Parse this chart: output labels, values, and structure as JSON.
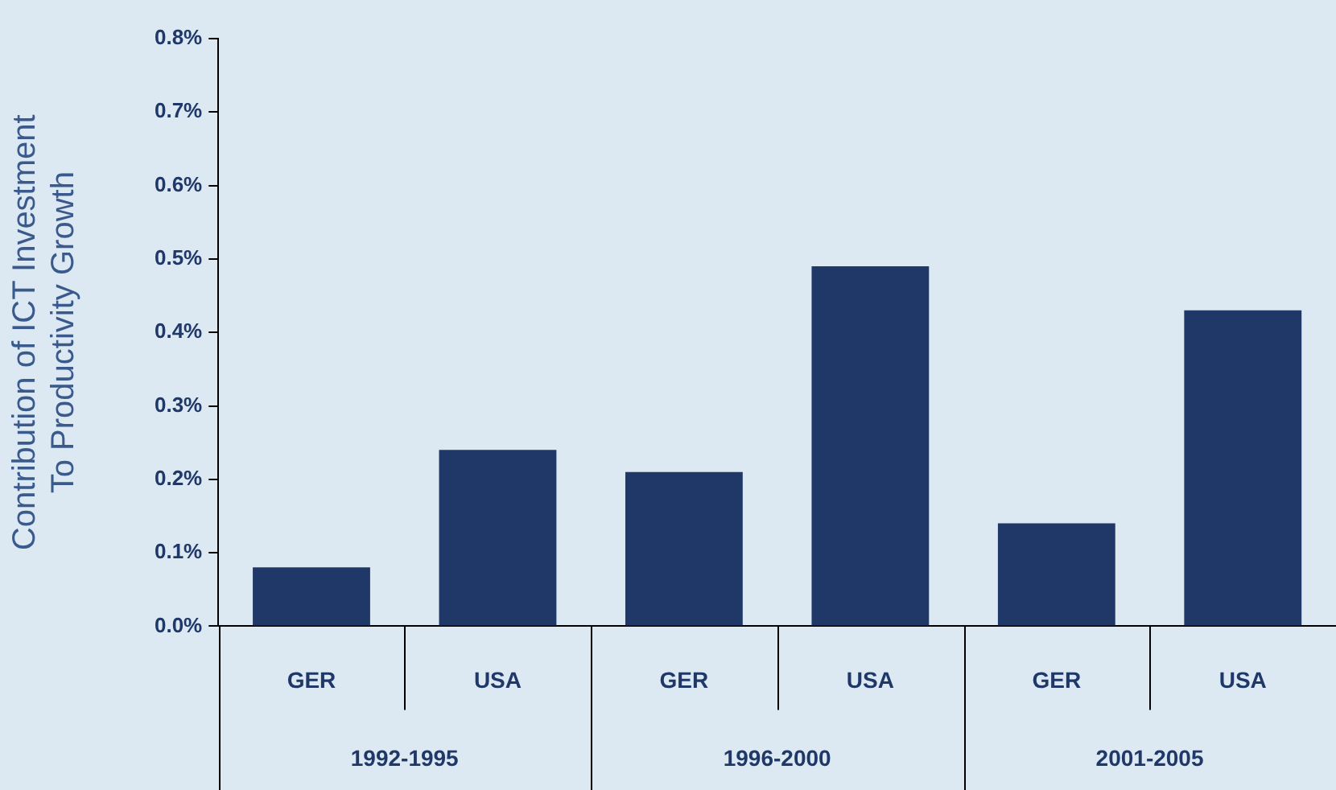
{
  "chart_data": {
    "type": "bar",
    "ylabel": "Contribution of ICT Investment\nTo Productivity Growth",
    "categories": [
      "GER",
      "USA",
      "GER",
      "USA",
      "GER",
      "USA"
    ],
    "values": [
      0.08,
      0.24,
      0.21,
      0.49,
      0.14,
      0.43
    ],
    "color": "#1f3868",
    "ylim": [
      0,
      0.8
    ],
    "yticks": [
      {
        "value": 0,
        "label": "0.0%"
      },
      {
        "value": 0.1,
        "label": "0.1%"
      },
      {
        "value": 0.2,
        "label": "0.2%"
      },
      {
        "value": 0.3,
        "label": "0.3%"
      },
      {
        "value": 0.4,
        "label": "0.4%"
      },
      {
        "value": 0.5,
        "label": "0.5%"
      },
      {
        "value": 0.6,
        "label": "0.6%"
      },
      {
        "value": 0.7,
        "label": "0.7%"
      },
      {
        "value": 0.8,
        "label": "0.8%"
      }
    ],
    "annotations": [
      "1992-1995",
      "1996-2000",
      "2001-2005"
    ],
    "grid": false,
    "legend": false
  }
}
